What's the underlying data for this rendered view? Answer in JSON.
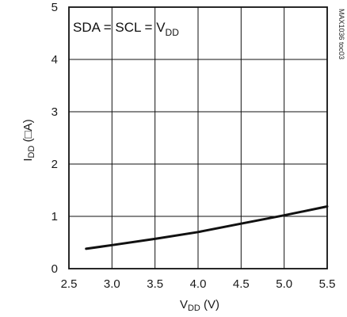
{
  "chart_data": {
    "type": "line",
    "title": "",
    "xlabel": {
      "main": "V",
      "sub": "DD",
      "unit": " (V)"
    },
    "ylabel": {
      "main": "I",
      "sub": "DD",
      "unit": " (□A)"
    },
    "xlim": [
      2.5,
      5.5
    ],
    "ylim": [
      0,
      5
    ],
    "xticks": [
      2.5,
      3.0,
      3.5,
      4.0,
      4.5,
      5.0,
      5.5
    ],
    "xtick_labels": [
      "2.5",
      "3.0",
      "3.5",
      "4.0",
      "4.5",
      "5.0",
      "5.5"
    ],
    "yticks": [
      0,
      1,
      2,
      3,
      4,
      5
    ],
    "ytick_labels": [
      "0",
      "1",
      "2",
      "3",
      "4",
      "5"
    ],
    "grid": true,
    "annotation": {
      "prefix": "SDA = SCL = V",
      "sub": "DD"
    },
    "part_id": "MAX1036 toc03",
    "line_color": "#111111",
    "series": [
      {
        "x": [
          2.7,
          3.0,
          3.5,
          4.0,
          4.5,
          5.0,
          5.5
        ],
        "values": [
          0.38,
          0.45,
          0.57,
          0.7,
          0.86,
          1.02,
          1.19
        ]
      }
    ]
  }
}
